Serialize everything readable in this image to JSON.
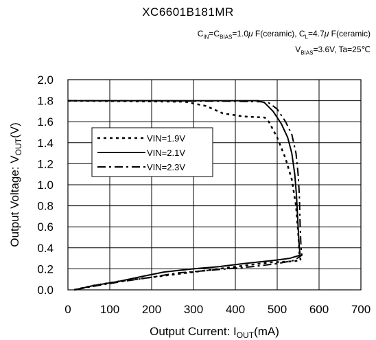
{
  "chart_data": {
    "type": "line",
    "title": "XC6601B181MR",
    "conditions": {
      "cin_label": "C",
      "cin_sub": "IN",
      "eq1": "=C",
      "cbias_sub": "BIAS",
      "cbias_value": "=1.0",
      "mu1": "μ",
      "cin_units": " F(ceramic), C",
      "cl_sub": "L",
      "cl_value": "=4.7",
      "mu2": "μ",
      "cl_units": " F(ceramic)",
      "vbias_label": "V",
      "vbias_sub": "BIAS",
      "vbias_value": "=3.6V, Ta=25℃"
    },
    "xlabel_main": "Output Current: I",
    "xlabel_sub": "OUT",
    "xlabel_unit": "(mA)",
    "ylabel_main": "Output Voltage: V",
    "ylabel_sub": "OUT",
    "ylabel_unit": "(V)",
    "xlim": [
      0,
      700
    ],
    "ylim": [
      0,
      2.0
    ],
    "xticks": [
      "0",
      "100",
      "200",
      "300",
      "400",
      "500",
      "600",
      "700"
    ],
    "yticks": [
      "0.0",
      "0.2",
      "0.4",
      "0.6",
      "0.8",
      "1.0",
      "1.2",
      "1.4",
      "1.6",
      "1.8",
      "2.0"
    ],
    "grid": true,
    "legend_position": "middle-left",
    "series": [
      {
        "name": "VIN=1.9V",
        "dash": "4,5",
        "points": [
          [
            0,
            1.8
          ],
          [
            150,
            1.795
          ],
          [
            280,
            1.79
          ],
          [
            330,
            1.75
          ],
          [
            370,
            1.68
          ],
          [
            420,
            1.65
          ],
          [
            470,
            1.64
          ],
          [
            480,
            1.6
          ],
          [
            500,
            1.45
          ],
          [
            520,
            1.25
          ],
          [
            535,
            1.05
          ],
          [
            545,
            0.8
          ],
          [
            550,
            0.55
          ],
          [
            553,
            0.35
          ],
          [
            556,
            0.28
          ],
          [
            530,
            0.27
          ],
          [
            480,
            0.26
          ],
          [
            420,
            0.23
          ],
          [
            360,
            0.2
          ],
          [
            300,
            0.17
          ],
          [
            240,
            0.14
          ],
          [
            180,
            0.11
          ],
          [
            120,
            0.08
          ],
          [
            60,
            0.04
          ],
          [
            15,
            0.0
          ]
        ]
      },
      {
        "name": "VIN=2.1V",
        "dash": "",
        "points": [
          [
            0,
            1.8
          ],
          [
            200,
            1.8
          ],
          [
            400,
            1.8
          ],
          [
            455,
            1.8
          ],
          [
            470,
            1.78
          ],
          [
            490,
            1.7
          ],
          [
            510,
            1.58
          ],
          [
            525,
            1.45
          ],
          [
            535,
            1.3
          ],
          [
            542,
            1.1
          ],
          [
            546,
            0.9
          ],
          [
            550,
            0.6
          ],
          [
            553,
            0.4
          ],
          [
            555,
            0.33
          ],
          [
            530,
            0.3
          ],
          [
            490,
            0.28
          ],
          [
            420,
            0.25
          ],
          [
            360,
            0.22
          ],
          [
            300,
            0.2
          ],
          [
            230,
            0.17
          ],
          [
            180,
            0.13
          ],
          [
            120,
            0.08
          ],
          [
            60,
            0.04
          ],
          [
            15,
            0.0
          ]
        ]
      },
      {
        "name": "VIN=2.3V",
        "dash": "12,5,3,5",
        "points": [
          [
            0,
            1.8
          ],
          [
            200,
            1.8
          ],
          [
            400,
            1.795
          ],
          [
            460,
            1.79
          ],
          [
            480,
            1.78
          ],
          [
            500,
            1.72
          ],
          [
            520,
            1.6
          ],
          [
            535,
            1.48
          ],
          [
            545,
            1.3
          ],
          [
            550,
            1.1
          ],
          [
            553,
            0.9
          ],
          [
            555,
            0.6
          ],
          [
            557,
            0.4
          ],
          [
            559,
            0.33
          ],
          [
            540,
            0.28
          ],
          [
            500,
            0.25
          ],
          [
            440,
            0.22
          ],
          [
            380,
            0.2
          ],
          [
            320,
            0.18
          ],
          [
            260,
            0.16
          ],
          [
            200,
            0.12
          ],
          [
            130,
            0.08
          ],
          [
            70,
            0.04
          ],
          [
            15,
            0.0
          ]
        ]
      }
    ]
  }
}
